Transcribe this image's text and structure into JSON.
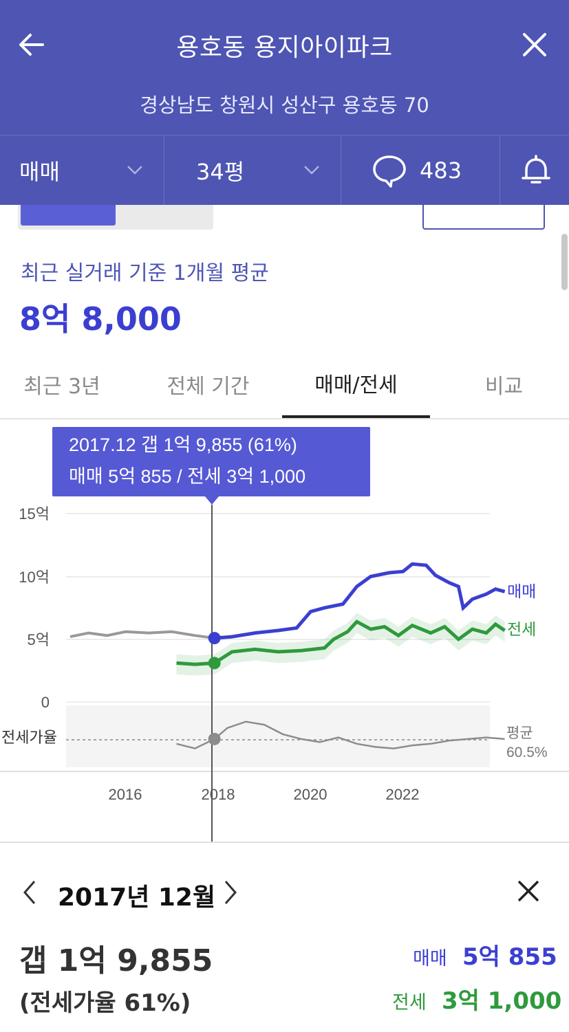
{
  "header": {
    "title": "용호동 용지아이파크",
    "address": "경상남도 창원시 성산구 용호동 70",
    "deal_type": "매매",
    "size": "34평",
    "comments": "483"
  },
  "summary": {
    "label": "최근 실거래 기준 1개월 평균",
    "price": "8억 8,000"
  },
  "tabs": [
    "최근 3년",
    "전체 기간",
    "매매/전세",
    "비교"
  ],
  "tooltip": {
    "line1": "2017.12  갭 1억 9,855 (61%)",
    "line2": "매매 5억 855 / 전세 3억 1,000"
  },
  "chart_data": {
    "type": "line",
    "y_ticks": [
      "15억",
      "10억",
      "5억",
      "0"
    ],
    "x_ticks": [
      "2016",
      "2018",
      "2020",
      "2022"
    ],
    "ratio_label": "전세가율",
    "avg_label": "평균",
    "avg_value": "60.5%",
    "series": [
      {
        "name": "매매",
        "color": "#3b3fd1",
        "x": [
          2014.8,
          2015.2,
          2015.6,
          2016.0,
          2016.5,
          2017.0,
          2017.5,
          2017.92,
          2018.3,
          2018.8,
          2019.3,
          2019.7,
          2020.0,
          2020.3,
          2020.7,
          2021.0,
          2021.3,
          2021.7,
          2022.0,
          2022.2,
          2022.5,
          2022.7,
          2023.0,
          2023.2,
          2023.3,
          2023.5,
          2023.8,
          2024.0,
          2024.2
        ],
        "y": [
          5.2,
          5.5,
          5.3,
          5.6,
          5.5,
          5.6,
          5.3,
          5.09,
          5.2,
          5.5,
          5.7,
          5.9,
          7.2,
          7.5,
          7.8,
          9.2,
          10.0,
          10.3,
          10.4,
          11.0,
          10.9,
          10.1,
          9.5,
          9.2,
          7.5,
          8.2,
          8.6,
          9.0,
          8.8
        ]
      },
      {
        "name": "전세",
        "color": "#2e9a3c",
        "x": [
          2017.1,
          2017.5,
          2017.92,
          2018.3,
          2018.8,
          2019.3,
          2019.8,
          2020.3,
          2020.5,
          2020.8,
          2021.0,
          2021.3,
          2021.6,
          2021.9,
          2022.2,
          2022.6,
          2022.9,
          2023.2,
          2023.5,
          2023.8,
          2024.0,
          2024.2
        ],
        "y": [
          3.1,
          3.0,
          3.1,
          4.0,
          4.2,
          4.0,
          4.1,
          4.3,
          5.0,
          5.6,
          6.4,
          5.8,
          6.0,
          5.3,
          6.1,
          5.5,
          6.0,
          5.0,
          5.8,
          5.5,
          6.2,
          5.7
        ]
      },
      {
        "name": "전세가율",
        "color": "#8c8c8c",
        "x": [
          2017.1,
          2017.5,
          2017.92,
          2018.2,
          2018.6,
          2019.0,
          2019.4,
          2019.8,
          2020.2,
          2020.6,
          2021.0,
          2021.4,
          2021.8,
          2022.2,
          2022.6,
          2023.0,
          2023.4,
          2023.8,
          2024.2
        ],
        "y": [
          58,
          55,
          61,
          68,
          72,
          70,
          64,
          61,
          59,
          62,
          58,
          56,
          55,
          57,
          58,
          60,
          61,
          62,
          61
        ]
      }
    ]
  },
  "panel": {
    "month": "2017년 12월",
    "gap": "갭 1억 9,855",
    "rate": "(전세가율 61%)",
    "sale_label": "매매",
    "sale_value": "5억 855",
    "jeonse_label": "전세",
    "jeonse_value": "3억 1,000"
  },
  "colors": {
    "header": "#4e55b3",
    "sale": "#3b3fd1",
    "jeonse": "#2e9a3c",
    "ratio": "#8c8c8c"
  }
}
